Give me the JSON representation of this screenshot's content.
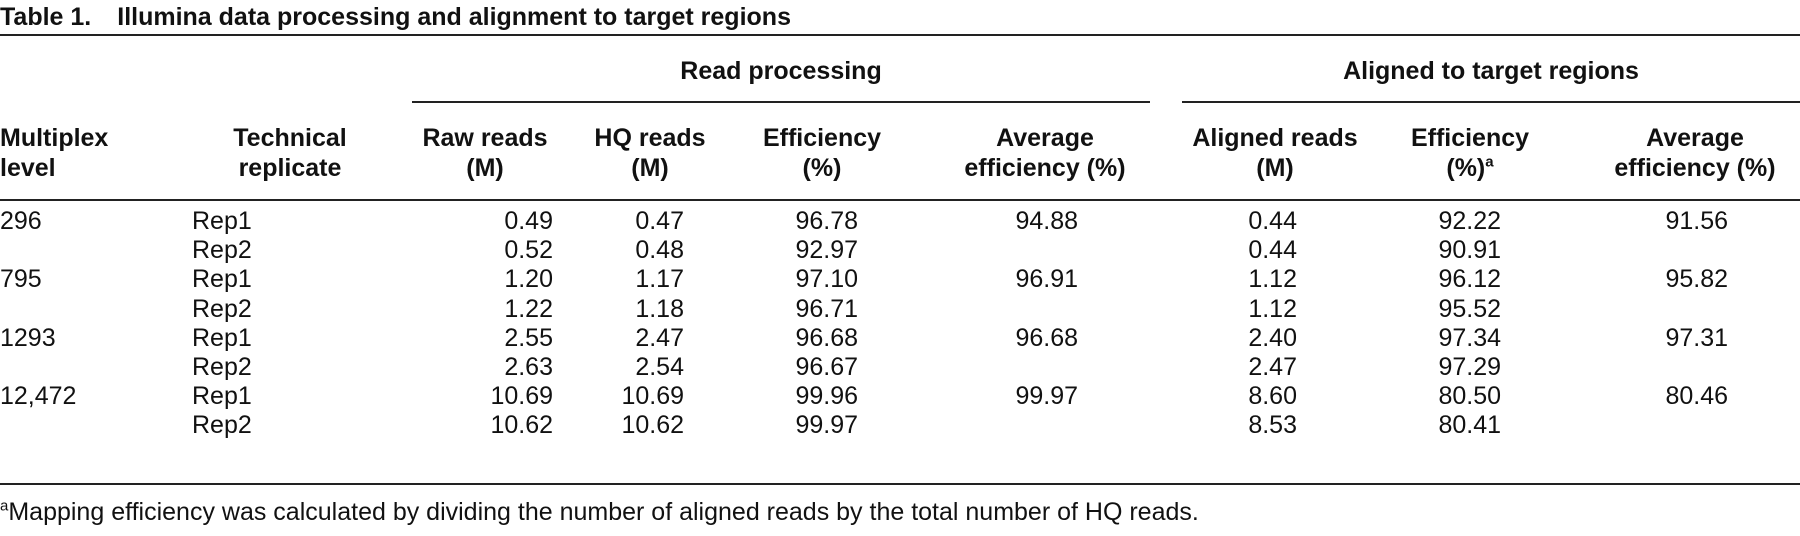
{
  "caption": {
    "label": "Table 1.",
    "title": "Illumina data processing and alignment to target regions"
  },
  "groups": {
    "read_processing": "Read processing",
    "aligned": "Aligned to target regions"
  },
  "headers": {
    "multiplex": [
      "Multiplex",
      "level"
    ],
    "replicate": [
      "Technical",
      "replicate"
    ],
    "raw": [
      "Raw reads",
      "(M)"
    ],
    "hq": [
      "HQ reads",
      "(M)"
    ],
    "eff1": [
      "Efficiency",
      "(%)"
    ],
    "avg1": [
      "Average",
      "efficiency (%)"
    ],
    "aligned": [
      "Aligned reads",
      "(M)"
    ],
    "eff2": [
      "Efficiency",
      "(%)",
      "a"
    ],
    "avg2": [
      "Average",
      "efficiency (%)"
    ]
  },
  "rows": [
    {
      "multiplex": "296",
      "replicate": "Rep1",
      "raw": "0.49",
      "hq": "0.47",
      "eff1": "96.78",
      "avg1": "94.88",
      "aligned": "0.44",
      "eff2": "92.22",
      "avg2": "91.56"
    },
    {
      "multiplex": "",
      "replicate": "Rep2",
      "raw": "0.52",
      "hq": "0.48",
      "eff1": "92.97",
      "avg1": "",
      "aligned": "0.44",
      "eff2": "90.91",
      "avg2": ""
    },
    {
      "multiplex": "795",
      "replicate": "Rep1",
      "raw": "1.20",
      "hq": "1.17",
      "eff1": "97.10",
      "avg1": "96.91",
      "aligned": "1.12",
      "eff2": "96.12",
      "avg2": "95.82"
    },
    {
      "multiplex": "",
      "replicate": "Rep2",
      "raw": "1.22",
      "hq": "1.18",
      "eff1": "96.71",
      "avg1": "",
      "aligned": "1.12",
      "eff2": "95.52",
      "avg2": ""
    },
    {
      "multiplex": "1293",
      "replicate": "Rep1",
      "raw": "2.55",
      "hq": "2.47",
      "eff1": "96.68",
      "avg1": "96.68",
      "aligned": "2.40",
      "eff2": "97.34",
      "avg2": "97.31"
    },
    {
      "multiplex": "",
      "replicate": "Rep2",
      "raw": "2.63",
      "hq": "2.54",
      "eff1": "96.67",
      "avg1": "",
      "aligned": "2.47",
      "eff2": "97.29",
      "avg2": ""
    },
    {
      "multiplex": "12,472",
      "replicate": "Rep1",
      "raw": "10.69",
      "hq": "10.69",
      "eff1": "99.96",
      "avg1": "99.97",
      "aligned": "8.60",
      "eff2": "80.50",
      "avg2": "80.46"
    },
    {
      "multiplex": "",
      "replicate": "Rep2",
      "raw": "10.62",
      "hq": "10.62",
      "eff1": "99.97",
      "avg1": "",
      "aligned": "8.53",
      "eff2": "80.41",
      "avg2": ""
    }
  ],
  "footnote": {
    "marker": "a",
    "text": "Mapping efficiency was calculated by dividing the number of aligned reads by the total number of HQ reads."
  }
}
